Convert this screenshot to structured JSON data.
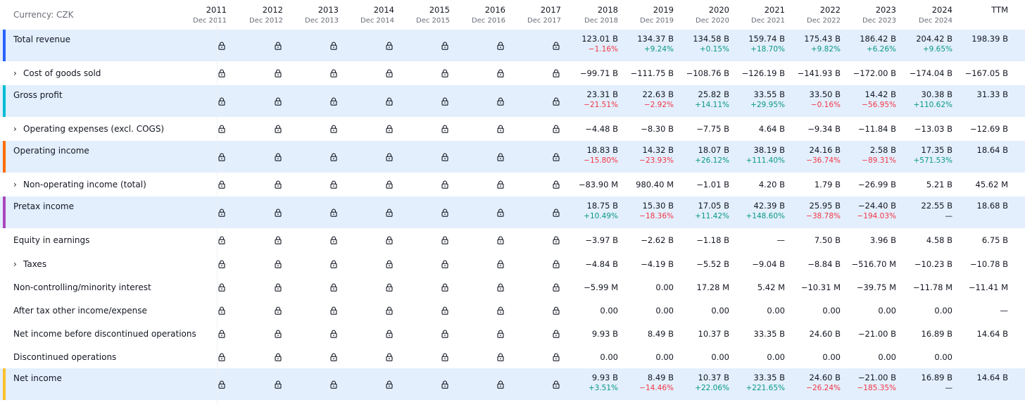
{
  "currency": "Currency: CZK",
  "years": [
    {
      "year": "2011",
      "date": "Dec 2011"
    },
    {
      "year": "2012",
      "date": "Dec 2012"
    },
    {
      "year": "2013",
      "date": "Dec 2013"
    },
    {
      "year": "2014",
      "date": "Dec 2014"
    },
    {
      "year": "2015",
      "date": "Dec 2015"
    },
    {
      "year": "2016",
      "date": "Dec 2016"
    },
    {
      "year": "2017",
      "date": "Dec 2017"
    },
    {
      "year": "2018",
      "date": "Dec 2018"
    },
    {
      "year": "2019",
      "date": "Dec 2019"
    },
    {
      "year": "2020",
      "date": "Dec 2020"
    },
    {
      "year": "2021",
      "date": "Dec 2021"
    },
    {
      "year": "2022",
      "date": "Dec 2022"
    },
    {
      "year": "2023",
      "date": "Dec 2023"
    },
    {
      "year": "2024",
      "date": "Dec 2024"
    },
    {
      "year": "TTM",
      "date": ""
    }
  ],
  "colors": {
    "highlight_bg": "#e3effd",
    "negative": "#f23645",
    "positive": "#089981",
    "total_revenue": "#2962ff",
    "gross_profit": "#00bcd4",
    "operating_income": "#ff6d00",
    "pretax_income": "#ab47bc",
    "net_income": "#fbc02d"
  },
  "lock_icon": "lock-icon",
  "rows": [
    {
      "label": "Total revenue",
      "expandable": false,
      "highlight": true,
      "color_key": "total_revenue",
      "locked": 7,
      "values": [
        "123.01 B",
        "134.37 B",
        "134.58 B",
        "159.74 B",
        "175.43 B",
        "186.42 B",
        "204.42 B",
        "198.39 B"
      ],
      "changes": [
        "−1.16%",
        "+9.24%",
        "+0.15%",
        "+18.70%",
        "+9.82%",
        "+6.26%",
        "+9.65%",
        ""
      ]
    },
    {
      "label": "Cost of goods sold",
      "expandable": true,
      "highlight": false,
      "locked": 7,
      "values": [
        "−99.71 B",
        "−111.75 B",
        "−108.76 B",
        "−126.19 B",
        "−141.93 B",
        "−172.00 B",
        "−174.04 B",
        "−167.05 B"
      ]
    },
    {
      "label": "Gross profit",
      "expandable": false,
      "highlight": true,
      "color_key": "gross_profit",
      "locked": 7,
      "values": [
        "23.31 B",
        "22.63 B",
        "25.82 B",
        "33.55 B",
        "33.50 B",
        "14.42 B",
        "30.38 B",
        "31.33 B"
      ],
      "changes": [
        "−21.51%",
        "−2.92%",
        "+14.11%",
        "+29.95%",
        "−0.16%",
        "−56.95%",
        "+110.62%",
        ""
      ]
    },
    {
      "label": "Operating expenses (excl. COGS)",
      "expandable": true,
      "highlight": false,
      "locked": 7,
      "values": [
        "−4.48 B",
        "−8.30 B",
        "−7.75 B",
        "4.64 B",
        "−9.34 B",
        "−11.84 B",
        "−13.03 B",
        "−12.69 B"
      ]
    },
    {
      "label": "Operating income",
      "expandable": false,
      "highlight": true,
      "color_key": "operating_income",
      "locked": 7,
      "values": [
        "18.83 B",
        "14.32 B",
        "18.07 B",
        "38.19 B",
        "24.16 B",
        "2.58 B",
        "17.35 B",
        "18.64 B"
      ],
      "changes": [
        "−15.80%",
        "−23.93%",
        "+26.12%",
        "+111.40%",
        "−36.74%",
        "−89.31%",
        "+571.53%",
        ""
      ]
    },
    {
      "label": "Non-operating income (total)",
      "expandable": true,
      "highlight": false,
      "locked": 7,
      "values": [
        "−83.90 M",
        "980.40 M",
        "−1.01 B",
        "4.20 B",
        "1.79 B",
        "−26.99 B",
        "5.21 B",
        "45.62 M"
      ]
    },
    {
      "label": "Pretax income",
      "expandable": false,
      "highlight": true,
      "color_key": "pretax_income",
      "locked": 7,
      "values": [
        "18.75 B",
        "15.30 B",
        "17.05 B",
        "42.39 B",
        "25.95 B",
        "−24.40 B",
        "22.55 B",
        "18.68 B"
      ],
      "changes": [
        "+10.49%",
        "−18.36%",
        "+11.42%",
        "+148.60%",
        "−38.78%",
        "−194.03%",
        "—",
        ""
      ]
    },
    {
      "label": "Equity in earnings",
      "expandable": false,
      "highlight": false,
      "locked": 7,
      "values": [
        "−3.97 B",
        "−2.62 B",
        "−1.18 B",
        "—",
        "7.50 B",
        "3.96 B",
        "4.58 B",
        "6.75 B"
      ]
    },
    {
      "label": "Taxes",
      "expandable": true,
      "highlight": false,
      "locked": 7,
      "values": [
        "−4.84 B",
        "−4.19 B",
        "−5.52 B",
        "−9.04 B",
        "−8.84 B",
        "−516.70 M",
        "−10.23 B",
        "−10.78 B"
      ]
    },
    {
      "label": "Non-controlling/minority interest",
      "expandable": false,
      "highlight": false,
      "locked": 7,
      "values": [
        "−5.99 M",
        "0.00",
        "17.28 M",
        "5.42 M",
        "−10.31 M",
        "−39.75 M",
        "−11.78 M",
        "−11.41 M"
      ]
    },
    {
      "label": "After tax other income/expense",
      "expandable": false,
      "highlight": false,
      "locked": 7,
      "values": [
        "0.00",
        "0.00",
        "0.00",
        "0.00",
        "0.00",
        "0.00",
        "0.00",
        "—"
      ]
    },
    {
      "label": "Net income before discontinued operations",
      "expandable": false,
      "highlight": false,
      "locked": 7,
      "values": [
        "9.93 B",
        "8.49 B",
        "10.37 B",
        "33.35 B",
        "24.60 B",
        "−21.00 B",
        "16.89 B",
        "14.64 B"
      ]
    },
    {
      "label": "Discontinued operations",
      "expandable": false,
      "highlight": false,
      "locked": 7,
      "values": [
        "0.00",
        "0.00",
        "0.00",
        "0.00",
        "0.00",
        "0.00",
        "0.00",
        ""
      ]
    },
    {
      "label": "Net income",
      "expandable": false,
      "highlight": true,
      "color_key": "net_income",
      "locked": 7,
      "values": [
        "9.93 B",
        "8.49 B",
        "10.37 B",
        "33.35 B",
        "24.60 B",
        "−21.00 B",
        "16.89 B",
        "14.64 B"
      ],
      "changes": [
        "+3.51%",
        "−14.46%",
        "+22.06%",
        "+221.65%",
        "−26.24%",
        "−185.35%",
        "—",
        ""
      ]
    }
  ]
}
